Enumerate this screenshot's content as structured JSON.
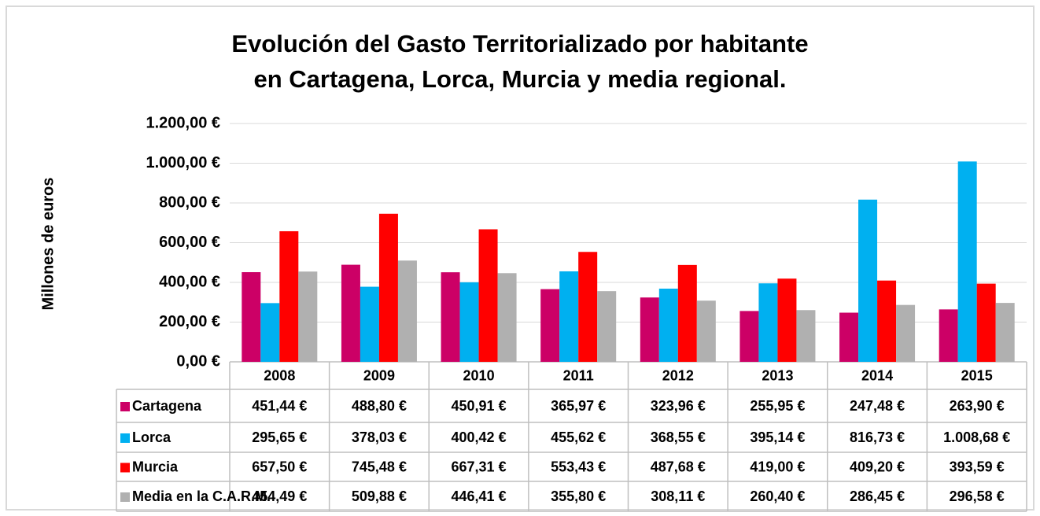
{
  "chart_data": {
    "type": "bar",
    "title": [
      "Evolución del Gasto Territorializado por habitante",
      "en Cartagena, Lorca, Murcia y media regional."
    ],
    "y_label": "Millones de euros",
    "categories": [
      "2008",
      "2009",
      "2010",
      "2011",
      "2012",
      "2013",
      "2014",
      "2015"
    ],
    "series": [
      {
        "name": "Cartagena",
        "color": "#cc0066",
        "values": [
          451.44,
          488.8,
          450.91,
          365.97,
          323.96,
          255.95,
          247.48,
          263.9
        ],
        "value_labels": [
          "451,44 €",
          "488,80 €",
          "450,91 €",
          "365,97 €",
          "323,96 €",
          "255,95 €",
          "247,48 €",
          "263,90 €"
        ]
      },
      {
        "name": "Lorca",
        "color": "#00b0f0",
        "values": [
          295.65,
          378.03,
          400.42,
          455.62,
          368.55,
          395.14,
          816.73,
          1008.68
        ],
        "value_labels": [
          "295,65 €",
          "378,03 €",
          "400,42 €",
          "455,62 €",
          "368,55 €",
          "395,14 €",
          "816,73 €",
          "1.008,68 €"
        ]
      },
      {
        "name": "Murcia",
        "color": "#ff0000",
        "values": [
          657.5,
          745.48,
          667.31,
          553.43,
          487.68,
          419.0,
          409.2,
          393.59
        ],
        "value_labels": [
          "657,50 €",
          "745,48 €",
          "667,31 €",
          "553,43 €",
          "487,68 €",
          "419,00 €",
          "409,20 €",
          "393,59 €"
        ]
      },
      {
        "name": "Media en la C.A.R.M.",
        "color": "#b0b0b0",
        "values": [
          454.49,
          509.88,
          446.41,
          355.8,
          308.11,
          260.4,
          286.45,
          296.58
        ],
        "value_labels": [
          "454,49 €",
          "509,88 €",
          "446,41 €",
          "355,80 €",
          "308,11 €",
          "260,40 €",
          "286,45 €",
          "296,58 €"
        ]
      }
    ],
    "ylim": [
      0,
      1200
    ],
    "yticks": [
      {
        "value": 0,
        "label": "0,00 €"
      },
      {
        "value": 200,
        "label": "200,00 €"
      },
      {
        "value": 400,
        "label": "400,00 €"
      },
      {
        "value": 600,
        "label": "600,00 €"
      },
      {
        "value": 800,
        "label": "800,00 €"
      },
      {
        "value": 1000,
        "label": "1.000,00 €"
      },
      {
        "value": 1200,
        "label": "1.200,00 €"
      }
    ],
    "grid": true
  }
}
